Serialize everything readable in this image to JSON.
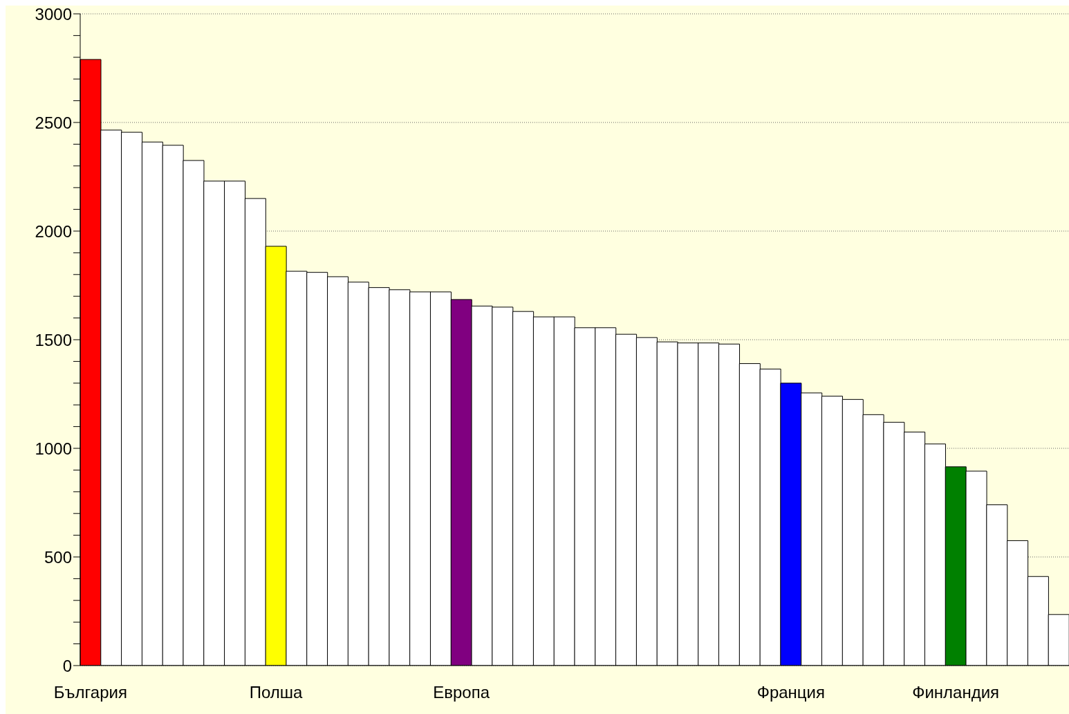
{
  "chart_data": {
    "type": "bar",
    "categories": [
      "България",
      null,
      null,
      null,
      null,
      null,
      null,
      null,
      null,
      "Полша",
      null,
      null,
      null,
      null,
      null,
      null,
      null,
      null,
      "Европа",
      null,
      null,
      null,
      null,
      null,
      null,
      null,
      null,
      null,
      null,
      null,
      null,
      null,
      null,
      null,
      "Франция",
      null,
      null,
      null,
      null,
      null,
      null,
      null,
      "Финландия",
      null,
      null,
      null,
      null,
      null
    ],
    "values": [
      2790,
      2465,
      2455,
      2410,
      2395,
      2325,
      2230,
      2230,
      2150,
      1930,
      1815,
      1810,
      1790,
      1765,
      1740,
      1730,
      1720,
      1720,
      1685,
      1655,
      1650,
      1630,
      1605,
      1605,
      1555,
      1555,
      1525,
      1510,
      1490,
      1485,
      1485,
      1480,
      1390,
      1365,
      1300,
      1255,
      1240,
      1225,
      1155,
      1120,
      1075,
      1020,
      915,
      895,
      740,
      575,
      410,
      235
    ],
    "colors": [
      "#ff0000",
      "#ffffff",
      "#ffffff",
      "#ffffff",
      "#ffffff",
      "#ffffff",
      "#ffffff",
      "#ffffff",
      "#ffffff",
      "#ffff00",
      "#ffffff",
      "#ffffff",
      "#ffffff",
      "#ffffff",
      "#ffffff",
      "#ffffff",
      "#ffffff",
      "#ffffff",
      "#800080",
      "#ffffff",
      "#ffffff",
      "#ffffff",
      "#ffffff",
      "#ffffff",
      "#ffffff",
      "#ffffff",
      "#ffffff",
      "#ffffff",
      "#ffffff",
      "#ffffff",
      "#ffffff",
      "#ffffff",
      "#ffffff",
      "#ffffff",
      "#0000ff",
      "#ffffff",
      "#ffffff",
      "#ffffff",
      "#ffffff",
      "#ffffff",
      "#ffffff",
      "#ffffff",
      "#008000",
      "#ffffff",
      "#ffffff",
      "#ffffff",
      "#ffffff",
      "#ffffff"
    ],
    "ylim": [
      0,
      3000
    ],
    "yticks": [
      0,
      {
        "value": 100,
        "label": null
      },
      {
        "value": 200,
        "label": null
      },
      {
        "value": 300,
        "label": null
      },
      {
        "value": 400,
        "label": null
      },
      500,
      {
        "value": 600,
        "label": null
      },
      {
        "value": 700,
        "label": null
      },
      {
        "value": 800,
        "label": null
      },
      {
        "value": 900,
        "label": null
      },
      1000,
      {
        "value": 1100,
        "label": null
      },
      {
        "value": 1200,
        "label": null
      },
      {
        "value": 1300,
        "label": null
      },
      {
        "value": 1400,
        "label": null
      },
      1500,
      {
        "value": 1600,
        "label": null
      },
      {
        "value": 1700,
        "label": null
      },
      {
        "value": 1800,
        "label": null
      },
      {
        "value": 1900,
        "label": null
      },
      2000,
      {
        "value": 2100,
        "label": null
      },
      {
        "value": 2200,
        "label": null
      },
      {
        "value": 2300,
        "label": null
      },
      {
        "value": 2400,
        "label": null
      },
      2500,
      {
        "value": 2600,
        "label": null
      },
      {
        "value": 2700,
        "label": null
      },
      {
        "value": 2800,
        "label": null
      },
      {
        "value": 2900,
        "label": null
      },
      3000
    ],
    "grid": "y"
  }
}
